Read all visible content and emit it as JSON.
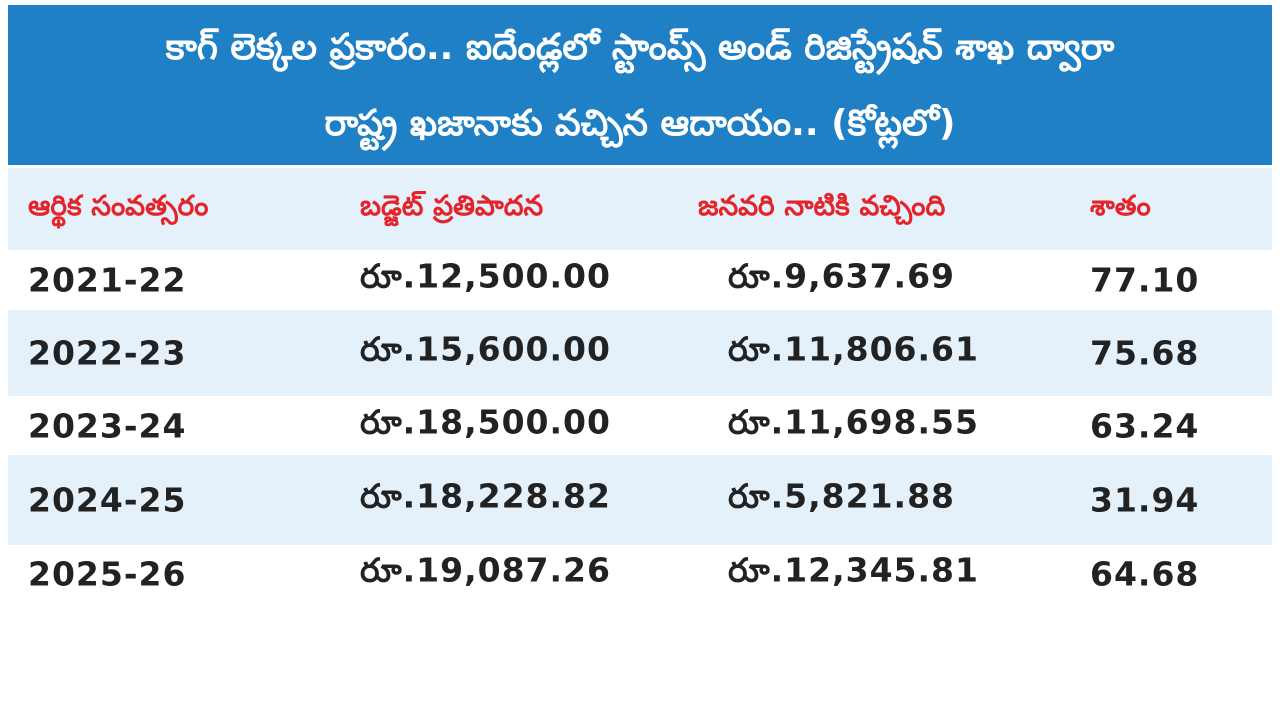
{
  "header": {
    "title_lines": [
      "కాగ్ లెక్కల ప్రకారం.. ఐదేండ్లలో స్టాంప్స్ అండ్ రిజిస్ట్రేషన్ శాఖ ద్వారా",
      "రాష్ట్ర ఖజానాకు వచ్చిన ఆదాయం.. (కోట్లలో)"
    ]
  },
  "table": {
    "columns": [
      "ఆర్థిక సంవత్సరం",
      "బడ్జెట్ ప్రతిపాదన",
      "జనవరి నాటికి వచ్చింది",
      "శాతం"
    ],
    "rows": [
      [
        "2021-22",
        "రూ.12,500.00",
        "రూ.9,637.69",
        "77.10"
      ],
      [
        "2022-23",
        "రూ.15,600.00",
        "రూ.11,806.61",
        "75.68"
      ],
      [
        "2023-24",
        "రూ.18,500.00",
        "రూ.11,698.55",
        "63.24"
      ],
      [
        "2024-25",
        "రూ.18,228.82",
        "రూ.5,821.88",
        "31.94"
      ],
      [
        "2025-26",
        "రూ.19,087.26",
        "రూ.12,345.81",
        "64.68"
      ]
    ]
  }
}
